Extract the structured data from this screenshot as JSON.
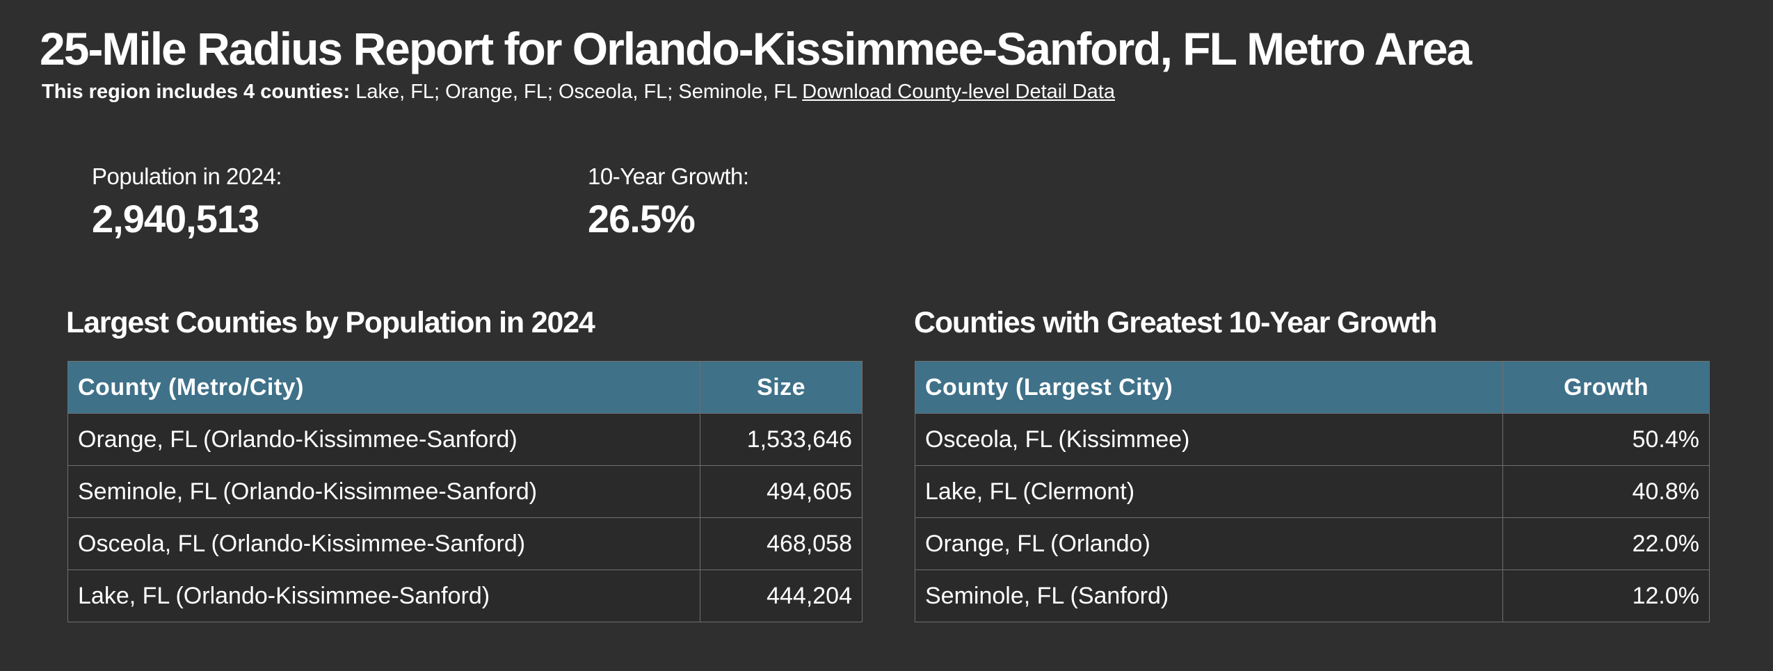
{
  "header": {
    "title": "25-Mile Radius Report for Orlando-Kissimmee-Sanford, FL Metro Area",
    "region_lead": "This region includes 4 counties:",
    "region_counties": "Lake, FL; Orange, FL; Osceola, FL; Seminole, FL",
    "download_link": "Download County-level Detail Data"
  },
  "stats": {
    "population_label": "Population in 2024:",
    "population_value": "2,940,513",
    "growth_label": "10-Year Growth:",
    "growth_value": "26.5%"
  },
  "largest": {
    "title": "Largest Counties by Population in 2024",
    "col_county": "County (Metro/City)",
    "col_size": "Size",
    "rows": [
      {
        "county": "Orange, FL (Orlando-Kissimmee-Sanford)",
        "value": "1,533,646"
      },
      {
        "county": "Seminole, FL (Orlando-Kissimmee-Sanford)",
        "value": "494,605"
      },
      {
        "county": "Osceola, FL (Orlando-Kissimmee-Sanford)",
        "value": "468,058"
      },
      {
        "county": "Lake, FL (Orlando-Kissimmee-Sanford)",
        "value": "444,204"
      }
    ]
  },
  "growth": {
    "title": "Counties with Greatest 10-Year Growth",
    "col_county": "County (Largest City)",
    "col_growth": "Growth",
    "rows": [
      {
        "county": "Osceola, FL (Kissimmee)",
        "value": "50.4%"
      },
      {
        "county": "Lake, FL (Clermont)",
        "value": "40.8%"
      },
      {
        "county": "Orange, FL (Orlando)",
        "value": "22.0%"
      },
      {
        "county": "Seminole, FL (Sanford)",
        "value": "12.0%"
      }
    ]
  }
}
